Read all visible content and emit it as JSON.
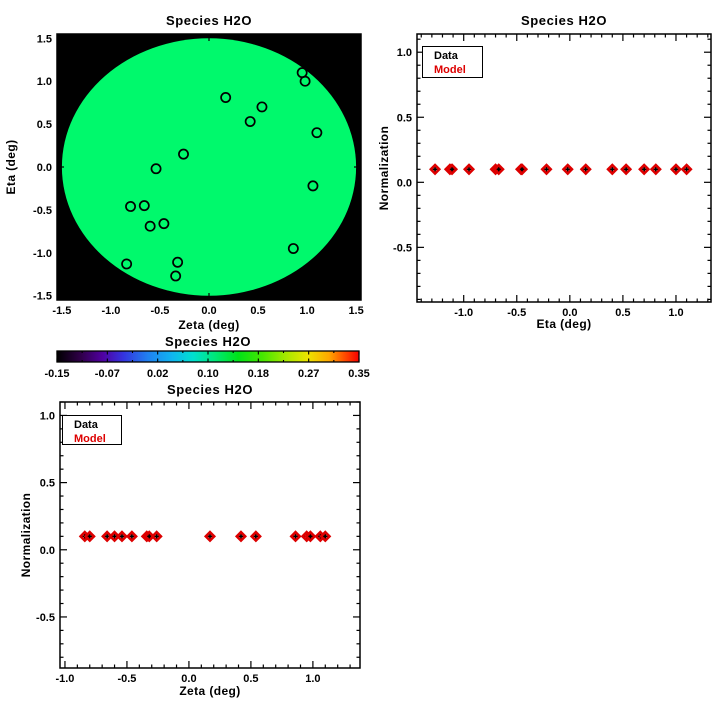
{
  "figure_title": "Species H2O",
  "colors": {
    "data_marker": "#000000",
    "model_marker": "#dd0000",
    "disk_fill": "#00f96c",
    "map_background": "#000000",
    "frame": "#000000"
  },
  "chart_data": [
    {
      "id": "sky-map",
      "type": "scatter",
      "title": "Species H2O",
      "xlabel": "Zeta (deg)",
      "ylabel": "Eta (deg)",
      "xlim": [
        -1.55,
        1.55
      ],
      "ylim": [
        -1.55,
        1.55
      ],
      "xticks": [
        -1.5,
        -1.0,
        -0.5,
        0.0,
        0.5,
        1.0,
        1.5
      ],
      "yticks": [
        -1.5,
        -1.0,
        -0.5,
        0.0,
        0.5,
        1.0,
        1.5
      ],
      "minor_tick_step": 0.1,
      "plot_background": "#000000",
      "disk": {
        "cx": 0,
        "cy": 0,
        "rx": 1.5,
        "ry": 1.5,
        "color": "#00f96c"
      },
      "marker": "open-circle",
      "points_zeta_eta": [
        [
          0.95,
          1.1
        ],
        [
          0.98,
          1.0
        ],
        [
          0.17,
          0.81
        ],
        [
          0.54,
          0.7
        ],
        [
          0.42,
          0.53
        ],
        [
          1.1,
          0.4
        ],
        [
          -0.26,
          0.15
        ],
        [
          -0.54,
          -0.02
        ],
        [
          1.06,
          -0.22
        ],
        [
          -0.8,
          -0.46
        ],
        [
          -0.66,
          -0.45
        ],
        [
          -0.6,
          -0.69
        ],
        [
          -0.46,
          -0.66
        ],
        [
          0.86,
          -0.95
        ],
        [
          -0.84,
          -1.13
        ],
        [
          -0.32,
          -1.11
        ],
        [
          -0.34,
          -1.27
        ]
      ]
    },
    {
      "id": "eta-profile",
      "type": "scatter",
      "title": "Species H2O",
      "xlabel": "Eta (deg)",
      "ylabel": "Normalization",
      "xlim": [
        -1.44,
        1.33
      ],
      "ylim": [
        -0.92,
        1.14
      ],
      "xticks": [
        -1.0,
        -0.5,
        0.0,
        0.5,
        1.0
      ],
      "yticks": [
        -0.5,
        0.0,
        0.5,
        1.0
      ],
      "minor_tick_step": 0.1,
      "legend": {
        "data_label": "Data",
        "model_label": "Model"
      },
      "y_value": 0.1,
      "x": [
        -1.27,
        -1.13,
        -1.11,
        -0.95,
        -0.7,
        -0.67,
        -0.46,
        -0.45,
        -0.22,
        -0.02,
        0.15,
        0.4,
        0.53,
        0.7,
        0.81,
        1.0,
        1.1
      ]
    },
    {
      "id": "colorbar",
      "type": "colorbar",
      "title": "Species H2O",
      "range": [
        -0.15,
        0.35
      ],
      "tick_labels": [
        "-0.15",
        "-0.07",
        "0.02",
        "0.10",
        "0.18",
        "0.27",
        "0.35"
      ],
      "gradient": [
        [
          0.0,
          "#000000"
        ],
        [
          0.08,
          "#30004a"
        ],
        [
          0.15,
          "#5000a0"
        ],
        [
          0.22,
          "#3434e0"
        ],
        [
          0.3,
          "#2080f0"
        ],
        [
          0.38,
          "#10b4f0"
        ],
        [
          0.45,
          "#00e0d0"
        ],
        [
          0.52,
          "#00e87c"
        ],
        [
          0.6,
          "#00e318"
        ],
        [
          0.68,
          "#46e600"
        ],
        [
          0.76,
          "#a8e800"
        ],
        [
          0.83,
          "#ece400"
        ],
        [
          0.9,
          "#ffa800"
        ],
        [
          0.95,
          "#ff5000"
        ],
        [
          1.0,
          "#f80000"
        ]
      ]
    },
    {
      "id": "zeta-profile",
      "type": "scatter",
      "title": "Species H2O",
      "xlabel": "Zeta (deg)",
      "ylabel": "Normalization",
      "xlim": [
        -1.04,
        1.38
      ],
      "ylim": [
        -0.88,
        1.1
      ],
      "xticks": [
        -1.0,
        -0.5,
        0.0,
        0.5,
        1.0
      ],
      "yticks": [
        -0.5,
        0.0,
        0.5,
        1.0
      ],
      "minor_tick_step": 0.1,
      "legend": {
        "data_label": "Data",
        "model_label": "Model"
      },
      "y_value": 0.1,
      "x": [
        -0.84,
        -0.8,
        -0.66,
        -0.6,
        -0.54,
        -0.46,
        -0.34,
        -0.32,
        -0.26,
        0.17,
        0.42,
        0.54,
        0.86,
        0.95,
        0.98,
        1.06,
        1.1
      ]
    }
  ]
}
